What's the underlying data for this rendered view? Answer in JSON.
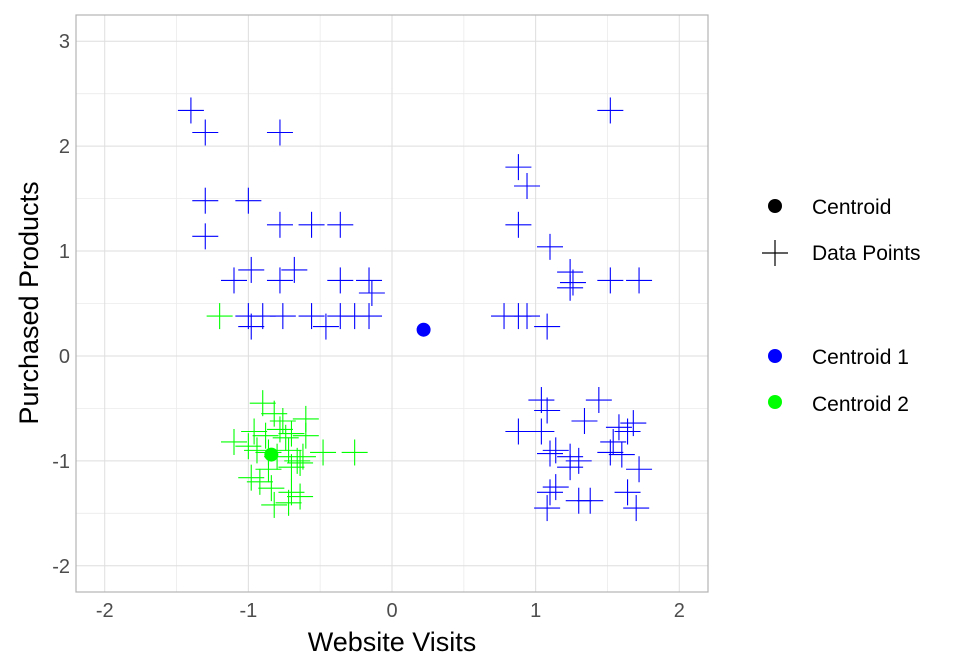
{
  "chart_data": {
    "type": "scatter",
    "xlabel": "Website Visits",
    "ylabel": "Purchased Products",
    "xlim": [
      -2.2,
      2.2
    ],
    "ylim": [
      -2.25,
      3.25
    ],
    "x_ticks": [
      -2,
      -1,
      0,
      1,
      2
    ],
    "y_ticks": [
      -2,
      -1,
      0,
      1,
      2,
      3
    ],
    "grid": true,
    "legend_position": "right",
    "legend_shape": {
      "entries": [
        {
          "label": "Centroid",
          "marker": "circle",
          "color": "#000000"
        },
        {
          "label": "Data Points",
          "marker": "plus",
          "color": "#000000"
        }
      ]
    },
    "legend_color": {
      "entries": [
        {
          "label": "Centroid 1",
          "color": "#0000FF"
        },
        {
          "label": "Centroid 2",
          "color": "#00FF00"
        }
      ]
    },
    "centroids": [
      {
        "label": "Centroid 1",
        "x": 0.22,
        "y": 0.25,
        "color": "#0000FF"
      },
      {
        "label": "Centroid 2",
        "x": -0.84,
        "y": -0.94,
        "color": "#00FF00"
      }
    ],
    "series": [
      {
        "cluster": 1,
        "color": "#0000FF",
        "points": [
          [
            -1.4,
            2.34
          ],
          [
            -1.3,
            2.13
          ],
          [
            -0.78,
            2.13
          ],
          [
            -1.3,
            1.48
          ],
          [
            -1.3,
            1.14
          ],
          [
            -1.0,
            1.48
          ],
          [
            -0.78,
            1.25
          ],
          [
            -0.56,
            1.25
          ],
          [
            -0.36,
            1.25
          ],
          [
            -1.1,
            0.72
          ],
          [
            -0.98,
            0.82
          ],
          [
            -0.78,
            0.72
          ],
          [
            -0.68,
            0.82
          ],
          [
            -0.36,
            0.72
          ],
          [
            -0.16,
            0.72
          ],
          [
            -0.14,
            0.6
          ],
          [
            -1.0,
            0.38
          ],
          [
            -0.98,
            0.28
          ],
          [
            -0.9,
            0.38
          ],
          [
            -0.76,
            0.38
          ],
          [
            -0.56,
            0.38
          ],
          [
            -0.46,
            0.28
          ],
          [
            -0.36,
            0.38
          ],
          [
            -0.26,
            0.38
          ],
          [
            -0.16,
            0.38
          ],
          [
            0.88,
            1.8
          ],
          [
            0.94,
            1.62
          ],
          [
            0.88,
            1.25
          ],
          [
            1.1,
            1.04
          ],
          [
            1.24,
            0.8
          ],
          [
            1.26,
            0.7
          ],
          [
            1.24,
            0.65
          ],
          [
            1.52,
            0.72
          ],
          [
            1.72,
            0.72
          ],
          [
            0.78,
            0.38
          ],
          [
            0.88,
            0.38
          ],
          [
            0.94,
            0.38
          ],
          [
            1.08,
            0.28
          ],
          [
            1.52,
            2.34
          ],
          [
            1.04,
            -0.42
          ],
          [
            1.08,
            -0.52
          ],
          [
            1.34,
            -0.62
          ],
          [
            1.44,
            -0.42
          ],
          [
            0.88,
            -0.72
          ],
          [
            1.04,
            -0.72
          ],
          [
            1.1,
            -0.93
          ],
          [
            1.14,
            -0.9
          ],
          [
            1.24,
            -0.96
          ],
          [
            1.24,
            -1.06
          ],
          [
            1.3,
            -1.0
          ],
          [
            1.54,
            -0.82
          ],
          [
            1.52,
            -0.92
          ],
          [
            1.58,
            -0.68
          ],
          [
            1.64,
            -0.72
          ],
          [
            1.68,
            -0.64
          ],
          [
            1.6,
            -0.94
          ],
          [
            1.72,
            -1.08
          ],
          [
            1.1,
            -1.3
          ],
          [
            1.08,
            -1.45
          ],
          [
            1.3,
            -1.38
          ],
          [
            1.38,
            -1.38
          ],
          [
            1.64,
            -1.3
          ],
          [
            1.7,
            -1.45
          ],
          [
            1.14,
            -1.25
          ]
        ]
      },
      {
        "cluster": 2,
        "color": "#00FF00",
        "points": [
          [
            -1.2,
            0.38
          ],
          [
            -0.9,
            -0.45
          ],
          [
            -0.82,
            -0.55
          ],
          [
            -0.76,
            -0.62
          ],
          [
            -0.6,
            -0.6
          ],
          [
            -0.96,
            -0.72
          ],
          [
            -0.88,
            -0.76
          ],
          [
            -0.78,
            -0.7
          ],
          [
            -0.74,
            -0.78
          ],
          [
            -0.7,
            -0.74
          ],
          [
            -0.6,
            -0.76
          ],
          [
            -1.1,
            -0.82
          ],
          [
            -1.0,
            -0.86
          ],
          [
            -0.94,
            -0.9
          ],
          [
            -0.86,
            -0.92
          ],
          [
            -0.8,
            -0.96
          ],
          [
            -0.72,
            -0.9
          ],
          [
            -0.66,
            -1.0
          ],
          [
            -0.62,
            -0.96
          ],
          [
            -0.48,
            -0.92
          ],
          [
            -0.26,
            -0.92
          ],
          [
            -0.7,
            -1.06
          ],
          [
            -0.64,
            -1.02
          ],
          [
            -0.98,
            -1.16
          ],
          [
            -0.92,
            -1.2
          ],
          [
            -0.84,
            -1.26
          ],
          [
            -0.7,
            -1.3
          ],
          [
            -0.64,
            -1.34
          ],
          [
            -0.82,
            -1.42
          ],
          [
            -0.72,
            -1.4
          ],
          [
            -0.86,
            -1.08
          ]
        ]
      }
    ]
  }
}
